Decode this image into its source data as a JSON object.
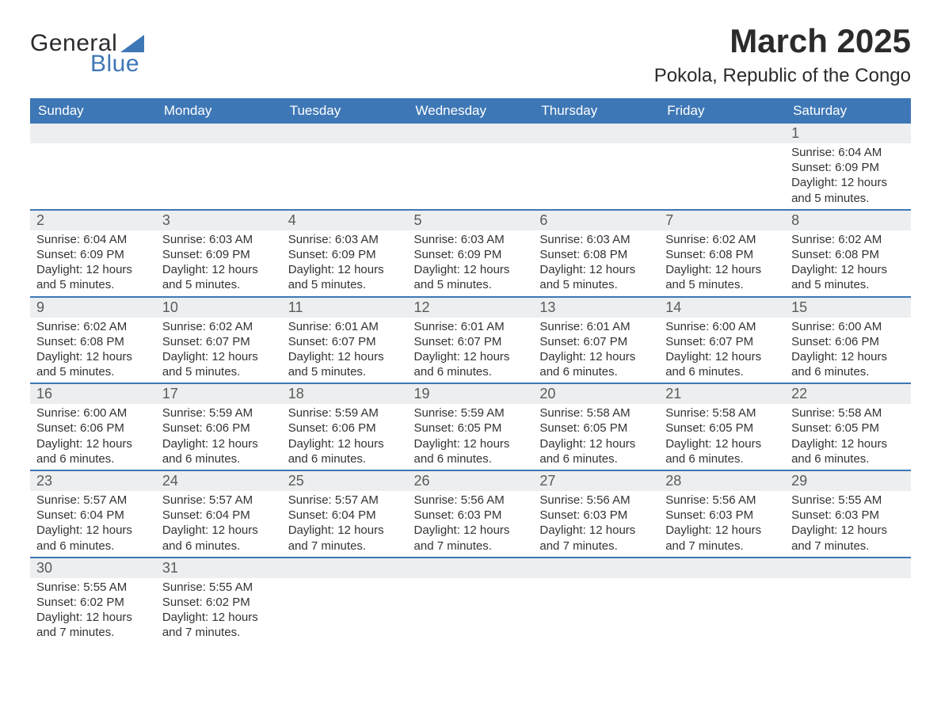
{
  "brand": {
    "word1": "General",
    "word2": "Blue"
  },
  "title": "March 2025",
  "location": "Pokola, Republic of the Congo",
  "colors": {
    "header_bg": "#3e77b6",
    "header_text": "#ffffff",
    "daynum_bg": "#eceeef",
    "divider": "#3e77b6",
    "body_text": "#333333"
  },
  "typography": {
    "title_fontsize": 42,
    "location_fontsize": 24,
    "header_fontsize": 17,
    "daynum_fontsize": 18,
    "detail_fontsize": 15
  },
  "day_headers": [
    "Sunday",
    "Monday",
    "Tuesday",
    "Wednesday",
    "Thursday",
    "Friday",
    "Saturday"
  ],
  "weeks": [
    [
      null,
      null,
      null,
      null,
      null,
      null,
      {
        "n": "1",
        "sunrise": "Sunrise: 6:04 AM",
        "sunset": "Sunset: 6:09 PM",
        "day1": "Daylight: 12 hours",
        "day2": "and 5 minutes."
      }
    ],
    [
      {
        "n": "2",
        "sunrise": "Sunrise: 6:04 AM",
        "sunset": "Sunset: 6:09 PM",
        "day1": "Daylight: 12 hours",
        "day2": "and 5 minutes."
      },
      {
        "n": "3",
        "sunrise": "Sunrise: 6:03 AM",
        "sunset": "Sunset: 6:09 PM",
        "day1": "Daylight: 12 hours",
        "day2": "and 5 minutes."
      },
      {
        "n": "4",
        "sunrise": "Sunrise: 6:03 AM",
        "sunset": "Sunset: 6:09 PM",
        "day1": "Daylight: 12 hours",
        "day2": "and 5 minutes."
      },
      {
        "n": "5",
        "sunrise": "Sunrise: 6:03 AM",
        "sunset": "Sunset: 6:09 PM",
        "day1": "Daylight: 12 hours",
        "day2": "and 5 minutes."
      },
      {
        "n": "6",
        "sunrise": "Sunrise: 6:03 AM",
        "sunset": "Sunset: 6:08 PM",
        "day1": "Daylight: 12 hours",
        "day2": "and 5 minutes."
      },
      {
        "n": "7",
        "sunrise": "Sunrise: 6:02 AM",
        "sunset": "Sunset: 6:08 PM",
        "day1": "Daylight: 12 hours",
        "day2": "and 5 minutes."
      },
      {
        "n": "8",
        "sunrise": "Sunrise: 6:02 AM",
        "sunset": "Sunset: 6:08 PM",
        "day1": "Daylight: 12 hours",
        "day2": "and 5 minutes."
      }
    ],
    [
      {
        "n": "9",
        "sunrise": "Sunrise: 6:02 AM",
        "sunset": "Sunset: 6:08 PM",
        "day1": "Daylight: 12 hours",
        "day2": "and 5 minutes."
      },
      {
        "n": "10",
        "sunrise": "Sunrise: 6:02 AM",
        "sunset": "Sunset: 6:07 PM",
        "day1": "Daylight: 12 hours",
        "day2": "and 5 minutes."
      },
      {
        "n": "11",
        "sunrise": "Sunrise: 6:01 AM",
        "sunset": "Sunset: 6:07 PM",
        "day1": "Daylight: 12 hours",
        "day2": "and 5 minutes."
      },
      {
        "n": "12",
        "sunrise": "Sunrise: 6:01 AM",
        "sunset": "Sunset: 6:07 PM",
        "day1": "Daylight: 12 hours",
        "day2": "and 6 minutes."
      },
      {
        "n": "13",
        "sunrise": "Sunrise: 6:01 AM",
        "sunset": "Sunset: 6:07 PM",
        "day1": "Daylight: 12 hours",
        "day2": "and 6 minutes."
      },
      {
        "n": "14",
        "sunrise": "Sunrise: 6:00 AM",
        "sunset": "Sunset: 6:07 PM",
        "day1": "Daylight: 12 hours",
        "day2": "and 6 minutes."
      },
      {
        "n": "15",
        "sunrise": "Sunrise: 6:00 AM",
        "sunset": "Sunset: 6:06 PM",
        "day1": "Daylight: 12 hours",
        "day2": "and 6 minutes."
      }
    ],
    [
      {
        "n": "16",
        "sunrise": "Sunrise: 6:00 AM",
        "sunset": "Sunset: 6:06 PM",
        "day1": "Daylight: 12 hours",
        "day2": "and 6 minutes."
      },
      {
        "n": "17",
        "sunrise": "Sunrise: 5:59 AM",
        "sunset": "Sunset: 6:06 PM",
        "day1": "Daylight: 12 hours",
        "day2": "and 6 minutes."
      },
      {
        "n": "18",
        "sunrise": "Sunrise: 5:59 AM",
        "sunset": "Sunset: 6:06 PM",
        "day1": "Daylight: 12 hours",
        "day2": "and 6 minutes."
      },
      {
        "n": "19",
        "sunrise": "Sunrise: 5:59 AM",
        "sunset": "Sunset: 6:05 PM",
        "day1": "Daylight: 12 hours",
        "day2": "and 6 minutes."
      },
      {
        "n": "20",
        "sunrise": "Sunrise: 5:58 AM",
        "sunset": "Sunset: 6:05 PM",
        "day1": "Daylight: 12 hours",
        "day2": "and 6 minutes."
      },
      {
        "n": "21",
        "sunrise": "Sunrise: 5:58 AM",
        "sunset": "Sunset: 6:05 PM",
        "day1": "Daylight: 12 hours",
        "day2": "and 6 minutes."
      },
      {
        "n": "22",
        "sunrise": "Sunrise: 5:58 AM",
        "sunset": "Sunset: 6:05 PM",
        "day1": "Daylight: 12 hours",
        "day2": "and 6 minutes."
      }
    ],
    [
      {
        "n": "23",
        "sunrise": "Sunrise: 5:57 AM",
        "sunset": "Sunset: 6:04 PM",
        "day1": "Daylight: 12 hours",
        "day2": "and 6 minutes."
      },
      {
        "n": "24",
        "sunrise": "Sunrise: 5:57 AM",
        "sunset": "Sunset: 6:04 PM",
        "day1": "Daylight: 12 hours",
        "day2": "and 6 minutes."
      },
      {
        "n": "25",
        "sunrise": "Sunrise: 5:57 AM",
        "sunset": "Sunset: 6:04 PM",
        "day1": "Daylight: 12 hours",
        "day2": "and 7 minutes."
      },
      {
        "n": "26",
        "sunrise": "Sunrise: 5:56 AM",
        "sunset": "Sunset: 6:03 PM",
        "day1": "Daylight: 12 hours",
        "day2": "and 7 minutes."
      },
      {
        "n": "27",
        "sunrise": "Sunrise: 5:56 AM",
        "sunset": "Sunset: 6:03 PM",
        "day1": "Daylight: 12 hours",
        "day2": "and 7 minutes."
      },
      {
        "n": "28",
        "sunrise": "Sunrise: 5:56 AM",
        "sunset": "Sunset: 6:03 PM",
        "day1": "Daylight: 12 hours",
        "day2": "and 7 minutes."
      },
      {
        "n": "29",
        "sunrise": "Sunrise: 5:55 AM",
        "sunset": "Sunset: 6:03 PM",
        "day1": "Daylight: 12 hours",
        "day2": "and 7 minutes."
      }
    ],
    [
      {
        "n": "30",
        "sunrise": "Sunrise: 5:55 AM",
        "sunset": "Sunset: 6:02 PM",
        "day1": "Daylight: 12 hours",
        "day2": "and 7 minutes."
      },
      {
        "n": "31",
        "sunrise": "Sunrise: 5:55 AM",
        "sunset": "Sunset: 6:02 PM",
        "day1": "Daylight: 12 hours",
        "day2": "and 7 minutes."
      },
      null,
      null,
      null,
      null,
      null
    ]
  ]
}
